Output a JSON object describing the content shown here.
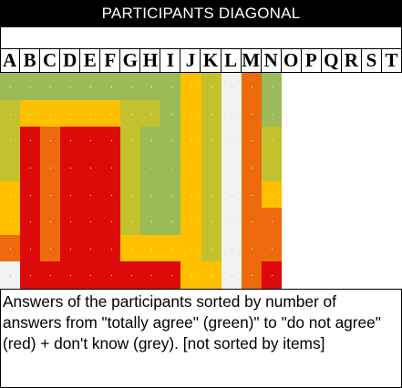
{
  "title": "PARTICIPANTS DIAGONAL",
  "caption": "Answers of the participants sorted by number of answers from \"totally agree\" (green)\" to \"do not agree\"(red) + don't know (grey). [not sorted by items]",
  "colors": {
    "green": "#9bbb59",
    "olive": "#c3c12e",
    "yellow": "#ffc000",
    "orange": "#ed6b0c",
    "red": "#dd0a0a",
    "grey": "#f2f2f2",
    "blank": "#ffffff"
  },
  "chart_data": {
    "type": "heatmap",
    "title": "PARTICIPANTS DIAGONAL",
    "columns": [
      "A",
      "B",
      "C",
      "D",
      "E",
      "F",
      "G",
      "H",
      "I",
      "J",
      "K",
      "L",
      "M",
      "N",
      "O",
      "P",
      "Q",
      "R",
      "S",
      "T"
    ],
    "legend_scale": [
      "green",
      "olive",
      "yellow",
      "orange",
      "red",
      "grey"
    ],
    "rows": [
      [
        "green",
        "green",
        "green",
        "green",
        "green",
        "green",
        "green",
        "green",
        "green",
        "yellow",
        "olive",
        "grey",
        "orange",
        "green",
        "blank",
        "blank",
        "blank",
        "blank",
        "blank",
        "blank"
      ],
      [
        "olive",
        "yellow",
        "yellow",
        "yellow",
        "yellow",
        "yellow",
        "olive",
        "olive",
        "green",
        "yellow",
        "olive",
        "grey",
        "orange",
        "green",
        "blank",
        "blank",
        "blank",
        "blank",
        "blank",
        "blank"
      ],
      [
        "olive",
        "red",
        "orange",
        "red",
        "red",
        "red",
        "olive",
        "green",
        "green",
        "yellow",
        "olive",
        "grey",
        "orange",
        "olive",
        "blank",
        "blank",
        "blank",
        "blank",
        "blank",
        "blank"
      ],
      [
        "olive",
        "red",
        "orange",
        "red",
        "red",
        "red",
        "olive",
        "green",
        "green",
        "yellow",
        "olive",
        "grey",
        "orange",
        "olive",
        "blank",
        "blank",
        "blank",
        "blank",
        "blank",
        "blank"
      ],
      [
        "yellow",
        "red",
        "orange",
        "red",
        "red",
        "red",
        "olive",
        "green",
        "green",
        "yellow",
        "olive",
        "grey",
        "orange",
        "yellow",
        "blank",
        "blank",
        "blank",
        "blank",
        "blank",
        "blank"
      ],
      [
        "yellow",
        "red",
        "orange",
        "red",
        "red",
        "red",
        "olive",
        "green",
        "green",
        "yellow",
        "olive",
        "grey",
        "orange",
        "orange",
        "blank",
        "blank",
        "blank",
        "blank",
        "blank",
        "blank"
      ],
      [
        "orange",
        "red",
        "orange",
        "red",
        "red",
        "red",
        "yellow",
        "yellow",
        "yellow",
        "yellow",
        "olive",
        "grey",
        "orange",
        "orange",
        "blank",
        "blank",
        "blank",
        "blank",
        "blank",
        "blank"
      ],
      [
        "grey",
        "red",
        "red",
        "red",
        "red",
        "red",
        "red",
        "red",
        "red",
        "yellow",
        "yellow",
        "grey",
        "orange",
        "red",
        "blank",
        "blank",
        "blank",
        "blank",
        "blank",
        "blank"
      ]
    ]
  }
}
